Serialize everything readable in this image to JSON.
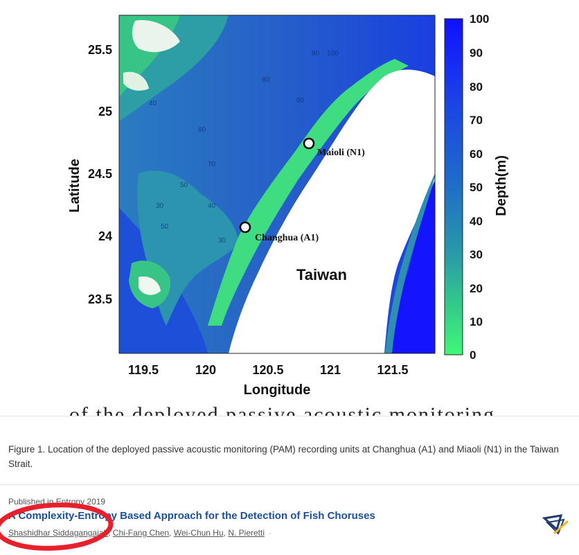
{
  "map": {
    "x_axis_title": "Longitude",
    "y_axis_title": "Latitude",
    "x_ticks": [
      "119.5",
      "120",
      "120.5",
      "121",
      "121.5"
    ],
    "y_ticks": [
      "25.5",
      "25",
      "24.5",
      "24",
      "23.5"
    ],
    "colorbar_title": "Depth(m)",
    "colorbar_ticks": [
      "100",
      "90",
      "80",
      "70",
      "60",
      "50",
      "40",
      "30",
      "20",
      "10",
      "0"
    ],
    "colorbar_colors": [
      "#1414ff",
      "#1a3fe0",
      "#1f66cc",
      "#2a8fb5",
      "#33bb8f",
      "#3df57a"
    ],
    "sites": [
      {
        "name": "Maioli (N1)"
      },
      {
        "name": "Changhua (A1)"
      }
    ],
    "island_label": "Taiwan",
    "contour_labels": [
      "90",
      "100",
      "90",
      "80",
      "40",
      "30",
      "50",
      "60",
      "70",
      "50",
      "40",
      "30"
    ]
  },
  "page": {
    "cut_text": "of the deployed passive acoustic monitoring (PAM) recording",
    "caption": "Figure 1. Location of the deployed passive acoustic monitoring (PAM) recording units at Changhua (A1) and Miaoli (N1) in the Taiwan Strait.",
    "published": "Published in Entropy 2019",
    "paper_title": "A Complexity-Entropy Based Approach for the Detection of Fish Choruses",
    "authors": [
      "Shashidhar Siddagangaiah",
      "Chi-Fang Chen",
      "Wei-Chun Hu",
      "N. Pieretti"
    ],
    "author_sep": ", ",
    "trailing_dot": "·"
  },
  "annotation": {
    "circle_color": "#e8202b"
  }
}
